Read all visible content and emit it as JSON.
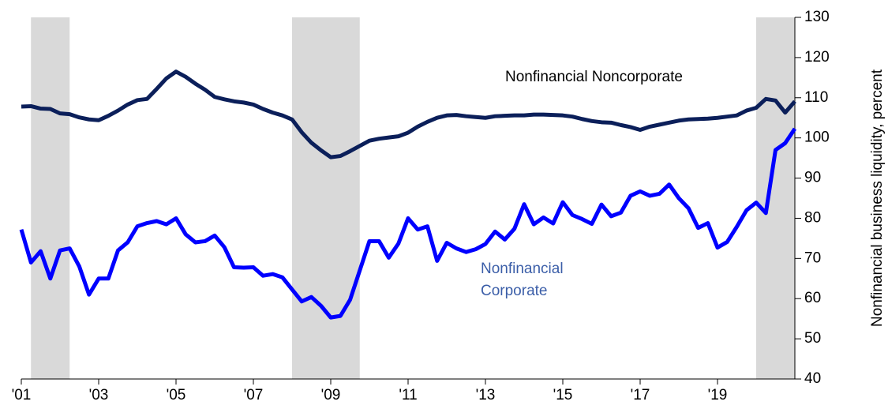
{
  "chart_data": {
    "type": "line",
    "y_axis_label": "Nonfinancial business liquidity, percent",
    "xlim": [
      2001,
      2021
    ],
    "xticks": [
      {
        "value": 2001,
        "label": "'01"
      },
      {
        "value": 2003,
        "label": "'03"
      },
      {
        "value": 2005,
        "label": "'05"
      },
      {
        "value": 2007,
        "label": "'07"
      },
      {
        "value": 2009,
        "label": "'09"
      },
      {
        "value": 2011,
        "label": "'11"
      },
      {
        "value": 2013,
        "label": "'13"
      },
      {
        "value": 2015,
        "label": "'15"
      },
      {
        "value": 2017,
        "label": "'17"
      },
      {
        "value": 2019,
        "label": "'19"
      }
    ],
    "ylim": [
      40,
      130
    ],
    "yticks": [
      40,
      50,
      60,
      70,
      80,
      90,
      100,
      110,
      120,
      130
    ],
    "y_axis_side": "right",
    "shaded_periods": [
      [
        2001.25,
        2002.25
      ],
      [
        2008,
        2009.75
      ],
      [
        2020,
        2021
      ]
    ],
    "shade_color": "#d9d9d9",
    "x": [
      2001,
      2001.25,
      2001.5,
      2001.75,
      2002,
      2002.25,
      2002.5,
      2002.75,
      2003,
      2003.25,
      2003.5,
      2003.75,
      2004,
      2004.25,
      2004.5,
      2004.75,
      2005,
      2005.25,
      2005.5,
      2005.75,
      2006,
      2006.25,
      2006.5,
      2006.75,
      2007,
      2007.25,
      2007.5,
      2007.75,
      2008,
      2008.25,
      2008.5,
      2008.75,
      2009,
      2009.25,
      2009.5,
      2009.75,
      2010,
      2010.25,
      2010.5,
      2010.75,
      2011,
      2011.25,
      2011.5,
      2011.75,
      2012,
      2012.25,
      2012.5,
      2012.75,
      2013,
      2013.25,
      2013.5,
      2013.75,
      2014,
      2014.25,
      2014.5,
      2014.75,
      2015,
      2015.25,
      2015.5,
      2015.75,
      2016,
      2016.25,
      2016.5,
      2016.75,
      2017,
      2017.25,
      2017.5,
      2017.75,
      2018,
      2018.25,
      2018.5,
      2018.75,
      2019,
      2019.25,
      2019.5,
      2019.75,
      2020,
      2020.25,
      2020.5,
      2020.75,
      2021
    ],
    "series": [
      {
        "color": "#0b1f5a",
        "values": [
          107.8,
          107.9,
          107.3,
          107.2,
          106.1,
          105.9,
          105.1,
          104.6,
          104.4,
          105.5,
          106.8,
          108.3,
          109.4,
          109.7,
          112.2,
          114.8,
          116.5,
          115.2,
          113.5,
          112,
          110.2,
          109.6,
          109.1,
          108.8,
          108.3,
          107.2,
          106.3,
          105.6,
          104.6,
          101.4,
          98.8,
          96.9,
          95.2,
          95.5,
          96.7,
          98,
          99.3,
          99.8,
          100.1,
          100.4,
          101.3,
          102.8,
          104,
          105,
          105.6,
          105.7,
          105.4,
          105.2,
          105,
          105.4,
          105.5,
          105.6,
          105.6,
          105.8,
          105.8,
          105.7,
          105.6,
          105.3,
          104.7,
          104.2,
          103.9,
          103.8,
          103.2,
          102.7,
          102,
          102.8,
          103.3,
          103.8,
          104.3,
          104.6,
          104.7,
          104.8,
          105,
          105.3,
          105.6,
          106.8,
          107.5,
          109.7,
          109.3,
          106.3,
          109.1
        ]
      },
      {
        "color": "#0000ff",
        "values": [
          77.2,
          69,
          71.8,
          65,
          72,
          72.5,
          68,
          61,
          65,
          65,
          72,
          74,
          78,
          78.8,
          79.3,
          78.5,
          80,
          76,
          74,
          74.3,
          75.7,
          72.8,
          67.8,
          67.7,
          67.8,
          65.7,
          66.1,
          65.3,
          62.3,
          59.3,
          60.4,
          58.2,
          55.3,
          55.7,
          59.7,
          67,
          74.3,
          74.3,
          70.2,
          73.7,
          80,
          77.2,
          78,
          69.4,
          73.9,
          72.5,
          71.6,
          72.3,
          73.6,
          76.7,
          74.7,
          77.4,
          83.5,
          78.5,
          80.2,
          78.7,
          84,
          80.8,
          79.8,
          78.6,
          83.4,
          80.5,
          81.4,
          85.6,
          86.7,
          85.6,
          86.1,
          88.4,
          85,
          82.5,
          77.6,
          78.8,
          72.7,
          74.1,
          77.9,
          82,
          83.9,
          81.3,
          97,
          98.7,
          102.3
        ]
      }
    ],
    "annotations": [
      {
        "lines": [
          "Nonfinancial Noncorporate"
        ],
        "color": "#000000"
      },
      {
        "lines": [
          "Nonfinancial",
          "Corporate"
        ],
        "color": "#3b5ea8"
      }
    ]
  }
}
